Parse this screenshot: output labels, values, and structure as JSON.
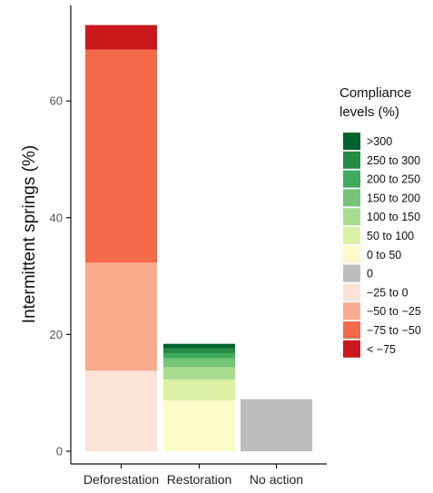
{
  "chart_data": {
    "type": "bar",
    "stacked": true,
    "ylabel": "Intermittent springs (%)",
    "xlabel": "",
    "ylim": [
      0,
      75
    ],
    "yticks": [
      0,
      20,
      40,
      60
    ],
    "grid": false,
    "legend_placement": "right",
    "categories": [
      "Deforestation",
      "Restoration",
      "No action"
    ],
    "legend": {
      "title_lines": [
        "Compliance",
        "levels (%)"
      ],
      "entries": [
        {
          "label": ">300",
          "color": "#00622E"
        },
        {
          "label": "250 to 300",
          "color": "#238B45"
        },
        {
          "label": "200 to 250",
          "color": "#41AB5D"
        },
        {
          "label": "150 to 200",
          "color": "#74C476"
        },
        {
          "label": "100 to 150",
          "color": "#A8DC8F"
        },
        {
          "label": "50 to 100",
          "color": "#DCF0A5"
        },
        {
          "label": "0 to 50",
          "color": "#FBFBC9"
        },
        {
          "label": "0",
          "color": "#BDBDBD"
        },
        {
          "label": "−25 to 0",
          "color": "#FDE2D8"
        },
        {
          "label": "−50 to −25",
          "color": "#FAAB8E"
        },
        {
          "label": "−75 to −50",
          "color": "#F56A4A"
        },
        {
          "label": "< −75",
          "color": "#CB181D"
        }
      ]
    },
    "series": [
      {
        "level": "< −75",
        "values": [
          4.2,
          0,
          0
        ]
      },
      {
        "level": "−75 to −50",
        "values": [
          36.5,
          0,
          0
        ]
      },
      {
        "level": "−50 to −25",
        "values": [
          18.5,
          0,
          0
        ]
      },
      {
        "level": "−25 to 0",
        "values": [
          13.8,
          0,
          0
        ]
      },
      {
        "level": "0",
        "values": [
          0,
          0,
          8.9
        ]
      },
      {
        "level": "0 to 50",
        "values": [
          0,
          8.7,
          0
        ]
      },
      {
        "level": "50 to 100",
        "values": [
          0,
          3.6,
          0
        ]
      },
      {
        "level": "100 to 150",
        "values": [
          0,
          2.1,
          0
        ]
      },
      {
        "level": "150 to 200",
        "values": [
          0,
          1.5,
          0
        ]
      },
      {
        "level": "200 to 250",
        "values": [
          0,
          0.9,
          0
        ]
      },
      {
        "level": "250 to 300",
        "values": [
          0,
          0.8,
          0
        ]
      },
      {
        "level": ">300",
        "values": [
          0,
          0.8,
          0
        ]
      }
    ],
    "stack_order": [
      "−25 to 0",
      "−50 to −25",
      "−75 to −50",
      "< −75",
      "0",
      "0 to 50",
      "50 to 100",
      "100 to 150",
      "150 to 200",
      "200 to 250",
      "250 to 300",
      ">300"
    ]
  }
}
